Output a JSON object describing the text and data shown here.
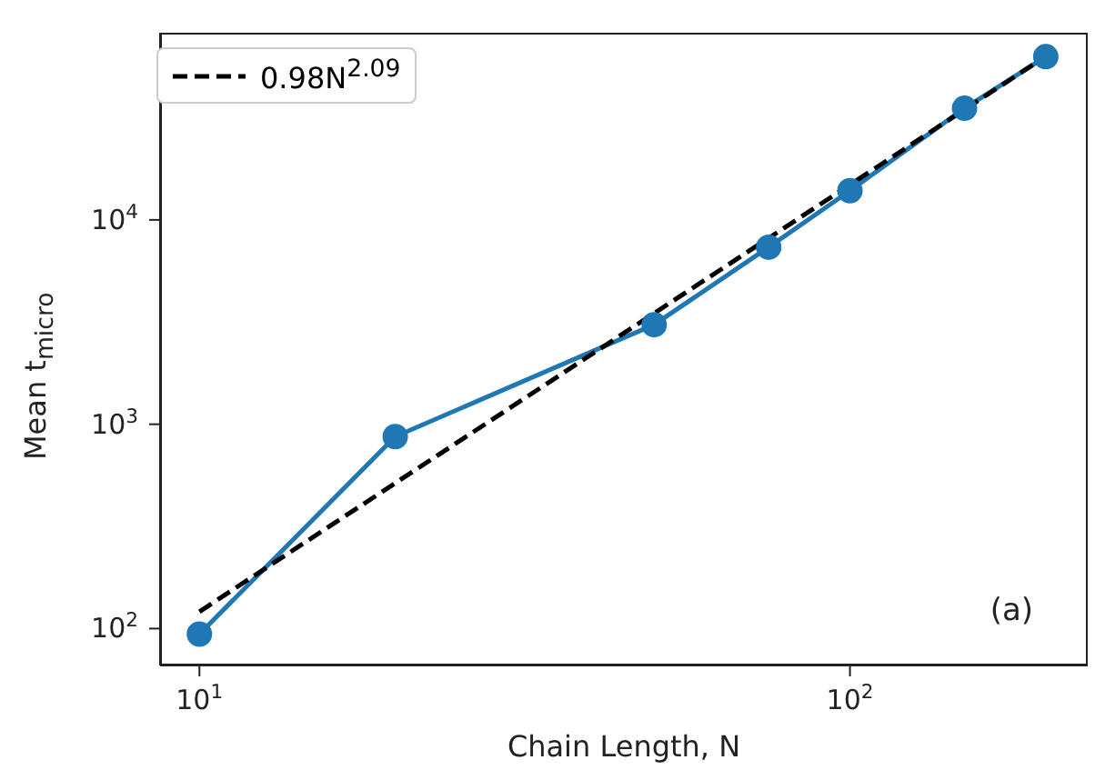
{
  "chart_data": {
    "type": "line",
    "xlabel": "Chain Length, N",
    "ylabel": "Mean t$_{micro}$",
    "log": "xy",
    "legend": "top left",
    "xlim": [
      8.7,
      232
    ],
    "xticks": [
      {
        "value": 10,
        "label": "10$^{1}$"
      },
      {
        "value": 100,
        "label": "10$^{2}$"
      }
    ],
    "ylim": [
      66,
      82400
    ],
    "yticks": [
      {
        "value": 100,
        "label": "10$^{2}$"
      },
      {
        "value": 1000,
        "label": "10$^{3}$"
      },
      {
        "value": 10000,
        "label": "10$^{4}$"
      }
    ],
    "annotations": [
      "(a)"
    ],
    "series": [
      {
        "color": "#1f77b4",
        "x": [
          10,
          20,
          50,
          75,
          100,
          150,
          200
        ],
        "values": [
          94,
          870,
          3070,
          7350,
          13900,
          35200,
          62900
        ],
        "marker": "circle",
        "line_style": "solid"
      },
      {
        "type": "line",
        "name": "0.98N$^{2.09}$",
        "color": "#000000",
        "x": [
          10,
          200
        ],
        "values": [
          121,
          63200
        ],
        "marker": "none",
        "line_style": "dashed"
      }
    ]
  }
}
